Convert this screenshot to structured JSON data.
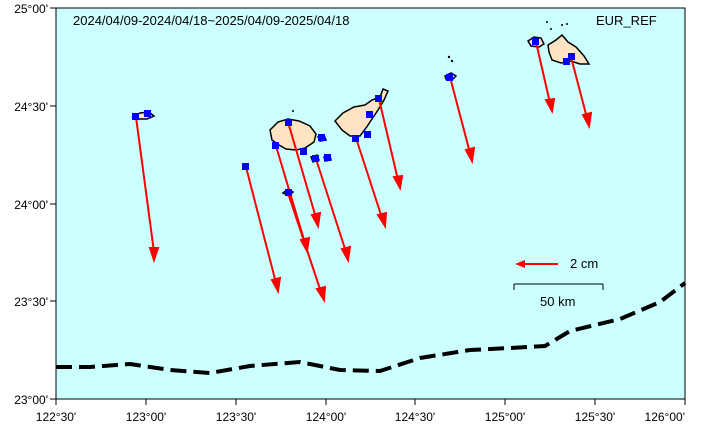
{
  "map": {
    "date_range": "2024/04/09-2024/04/18~2025/04/09-2025/04/18",
    "reference_frame": "EUR_REF",
    "scale_arrow_label": "2 cm",
    "scale_bar_label": "50 km",
    "x_ticks": [
      "122°30'",
      "123°00'",
      "123°30'",
      "124°00'",
      "124°30'",
      "125°00'",
      "125°30'",
      "126°00'"
    ],
    "y_ticks": [
      "25°00'",
      "24°30'",
      "24°00'",
      "23°30'",
      "23°00'"
    ],
    "colors": {
      "sea": "#ccffff",
      "land": "#ffe4c4",
      "station": "#0000ff",
      "vector": "#ff0000",
      "trench": "#000000"
    }
  }
}
